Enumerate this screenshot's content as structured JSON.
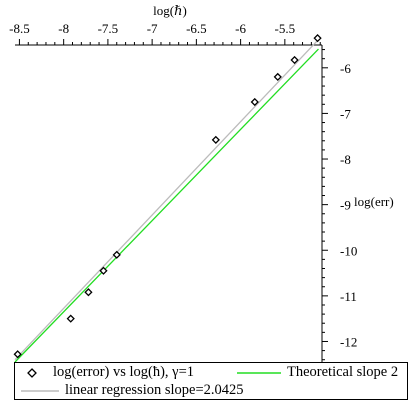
{
  "chart_data": {
    "type": "scatter",
    "title": "",
    "xlabel": "log(ℏ)",
    "ylabel": "log(err)",
    "xlim": [
      -8.55,
      -5.08
    ],
    "ylim": [
      -12.45,
      -5.5
    ],
    "x_ticks": [
      -8.5,
      -8,
      -7.5,
      -7,
      -6.5,
      -6,
      -5.5
    ],
    "x_tick_labels": [
      "-8.5",
      "-8",
      "-7.5",
      "-7",
      "-6.5",
      "-6",
      "-5.5"
    ],
    "y_ticks": [
      -6,
      -7,
      -8,
      -9,
      -10,
      -11,
      -12
    ],
    "y_tick_labels": [
      "-6",
      "-7",
      "-8",
      "-9",
      "-10",
      "-11",
      "-12"
    ],
    "x_axis_position": "top",
    "y_axis_position": "right",
    "grid": false,
    "legend_position": "bottom",
    "series": [
      {
        "name": "log(error) vs log(ħ), γ=1",
        "kind": "points",
        "marker": "diamond",
        "color": "#000000",
        "x": [
          -8.52,
          -7.92,
          -7.72,
          -7.55,
          -7.4,
          -6.28,
          -5.84,
          -5.58,
          -5.39,
          -5.13
        ],
        "y": [
          -12.28,
          -11.5,
          -10.92,
          -10.45,
          -10.1,
          -7.58,
          -6.75,
          -6.2,
          -5.83,
          -5.35
        ]
      },
      {
        "name": "Theoretical slope 2",
        "kind": "line",
        "color": "#22dd22",
        "x": [
          -8.55,
          -5.12
        ],
        "y": [
          -12.45,
          -5.59
        ]
      },
      {
        "name": "linear regression slope=2.0425",
        "kind": "line",
        "color": "#bbbbbb",
        "x": [
          -8.55,
          -5.12
        ],
        "y": [
          -12.4,
          -5.38
        ]
      }
    ]
  },
  "legend": {
    "entry_points": "log(error) vs log(ħ), γ=1",
    "entry_theory": "Theoretical slope 2",
    "entry_regression": "linear regression slope=2.0425"
  }
}
